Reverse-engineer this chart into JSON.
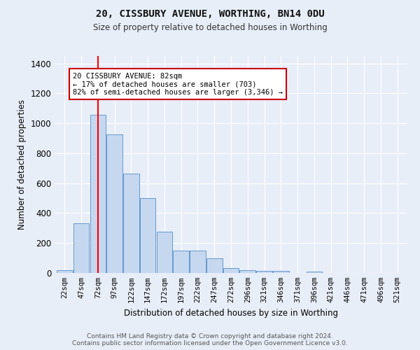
{
  "title": "20, CISSBURY AVENUE, WORTHING, BN14 0DU",
  "subtitle": "Size of property relative to detached houses in Worthing",
  "xlabel": "Distribution of detached houses by size in Worthing",
  "ylabel": "Number of detached properties",
  "categories": [
    "22sqm",
    "47sqm",
    "72sqm",
    "97sqm",
    "122sqm",
    "147sqm",
    "172sqm",
    "197sqm",
    "222sqm",
    "247sqm",
    "272sqm",
    "296sqm",
    "321sqm",
    "346sqm",
    "371sqm",
    "396sqm",
    "421sqm",
    "446sqm",
    "471sqm",
    "496sqm",
    "521sqm"
  ],
  "values": [
    20,
    330,
    1055,
    925,
    665,
    500,
    275,
    150,
    150,
    100,
    33,
    20,
    15,
    12,
    0,
    10,
    0,
    0,
    0,
    0,
    0
  ],
  "bar_color": "#c5d8f0",
  "bar_edge_color": "#6699cc",
  "red_line_x": 2,
  "annotation_text": "20 CISSBURY AVENUE: 82sqm\n← 17% of detached houses are smaller (703)\n82% of semi-detached houses are larger (3,346) →",
  "annotation_box_color": "#ffffff",
  "annotation_box_edge_color": "#cc0000",
  "ylim": [
    0,
    1450
  ],
  "yticks": [
    0,
    200,
    400,
    600,
    800,
    1000,
    1200,
    1400
  ],
  "background_color": "#e8eef8",
  "grid_color": "#ffffff",
  "footer_line1": "Contains HM Land Registry data © Crown copyright and database right 2024.",
  "footer_line2": "Contains public sector information licensed under the Open Government Licence v3.0."
}
